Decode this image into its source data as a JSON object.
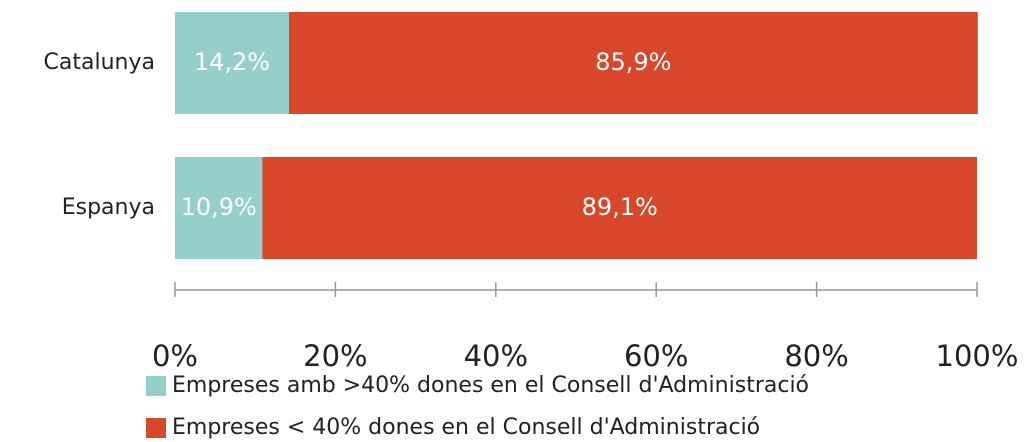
{
  "chart_data": {
    "type": "bar",
    "orientation": "horizontal",
    "stacked": true,
    "categories": [
      "Catalunya",
      "Espanya"
    ],
    "series": [
      {
        "name": "Empreses amb >40% dones en el Consell d'Administració",
        "color": "#94d0c9",
        "values": [
          14.2,
          10.9
        ],
        "value_labels": [
          "14,2%",
          "10,9%"
        ]
      },
      {
        "name": "Empreses < 40% dones en el Consell d'Administració",
        "color": "#d9472b",
        "values": [
          85.9,
          89.1
        ],
        "value_labels": [
          "85,9%",
          "89,1%"
        ]
      }
    ],
    "xlim": [
      0,
      100
    ],
    "xticks": [
      {
        "value": 0,
        "label": "0%"
      },
      {
        "value": 20,
        "label": "20%"
      },
      {
        "value": 40,
        "label": "40%"
      },
      {
        "value": 60,
        "label": "60%"
      },
      {
        "value": 80,
        "label": "80%"
      },
      {
        "value": 100,
        "label": "100%"
      }
    ],
    "legend": "bottom"
  }
}
